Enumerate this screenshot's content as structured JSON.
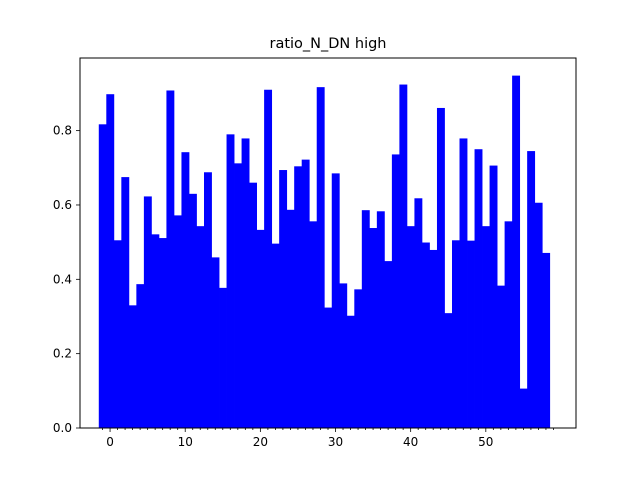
{
  "chart_data": {
    "type": "bar",
    "title": "ratio_N_DN high",
    "xlabel": "",
    "ylabel": "",
    "bar_color": "#0000ff",
    "x": [
      -1,
      0,
      1,
      2,
      3,
      4,
      5,
      6,
      7,
      8,
      9,
      10,
      11,
      12,
      13,
      14,
      15,
      16,
      17,
      18,
      19,
      20,
      21,
      22,
      23,
      24,
      25,
      26,
      27,
      28,
      29,
      30,
      31,
      32,
      33,
      34,
      35,
      36,
      37,
      38,
      39,
      40,
      41,
      42,
      43,
      44,
      45,
      46,
      47,
      48,
      49,
      50,
      51,
      52,
      53,
      54,
      55,
      56,
      57,
      58,
      59
    ],
    "values": [
      0.817,
      0.898,
      0.505,
      0.675,
      0.33,
      0.387,
      0.623,
      0.521,
      0.511,
      0.908,
      0.572,
      0.742,
      0.63,
      0.543,
      0.688,
      0.459,
      0.377,
      0.79,
      0.712,
      0.779,
      0.66,
      0.533,
      0.91,
      0.496,
      0.694,
      0.587,
      0.704,
      0.722,
      0.556,
      0.917,
      0.324,
      0.685,
      0.389,
      0.302,
      0.373,
      0.586,
      0.538,
      0.583,
      0.449,
      0.736,
      0.924,
      0.543,
      0.618,
      0.499,
      0.479,
      0.861,
      0.309,
      0.505,
      0.779,
      0.504,
      0.75,
      0.543,
      0.706,
      0.383,
      0.556,
      0.948,
      0.106,
      0.745,
      0.606,
      0.471,
      0.0
    ],
    "xlim": [
      -4.0,
      62.0
    ],
    "ylim": [
      0,
      0.9954
    ],
    "x_ticks": [
      0,
      10,
      20,
      30,
      40,
      50
    ],
    "x_minor_ticks": [
      -1,
      1,
      2,
      3,
      4,
      5,
      6,
      7,
      8,
      9,
      11,
      12,
      13,
      14,
      15,
      16,
      17,
      18,
      19,
      21,
      22,
      23,
      24,
      25,
      26,
      27,
      28,
      29,
      31,
      32,
      33,
      34,
      35,
      36,
      37,
      38,
      39,
      41,
      42,
      43,
      44,
      45,
      46,
      47,
      48,
      49,
      51,
      52,
      53,
      54,
      55,
      56,
      57,
      58,
      59
    ],
    "y_ticks": [
      0.0,
      0.2,
      0.4,
      0.6,
      0.8
    ],
    "x_tick_labels": [
      "0",
      "10",
      "20",
      "30",
      "40",
      "50"
    ],
    "y_tick_labels": [
      "0.0",
      "0.2",
      "0.4",
      "0.6",
      "0.8"
    ],
    "grid": false,
    "legend": "none"
  }
}
